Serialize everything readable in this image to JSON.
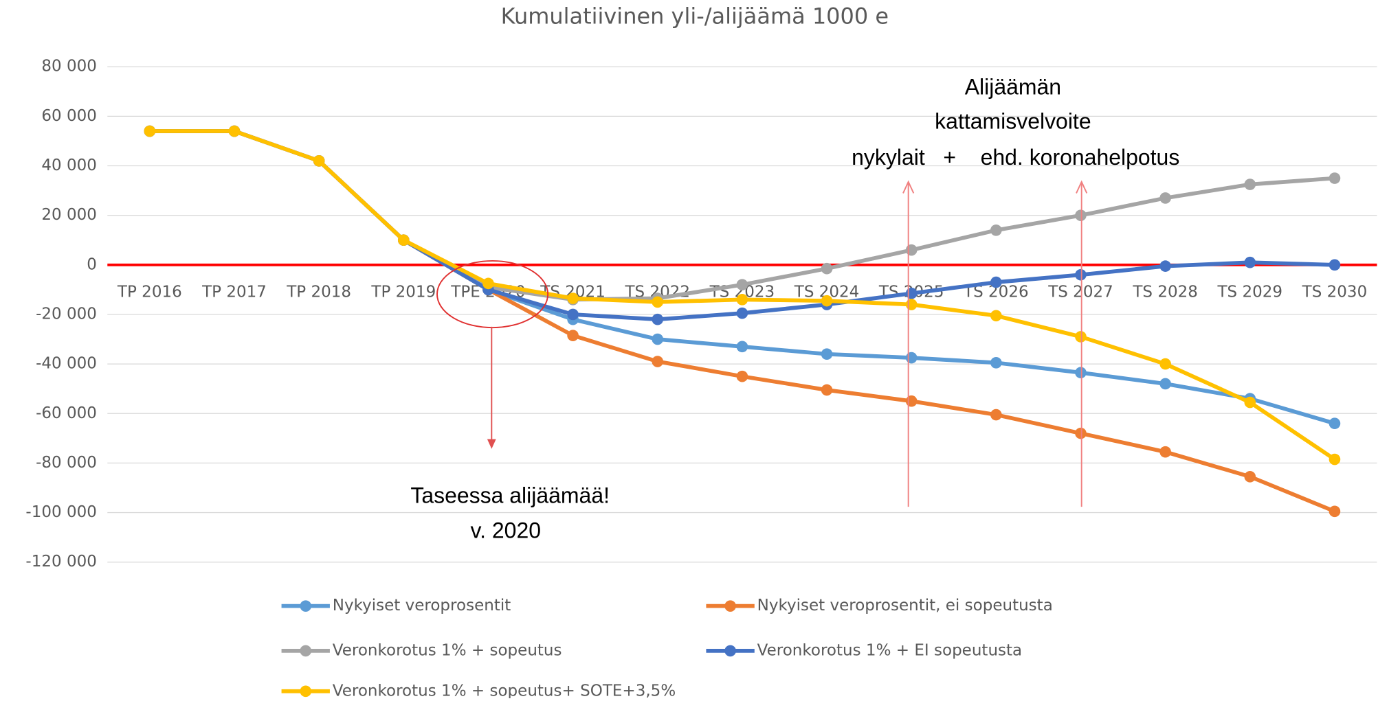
{
  "chart_data": {
    "type": "line",
    "title": "Kumulatiivinen yli-/alijäämä 1000 e",
    "categories": [
      "TP 2016",
      "TP 2017",
      "TP 2018",
      "TP 2019",
      "TPE 2020",
      "TS 2021",
      "TS 2022",
      "TS 2023",
      "TS 2024",
      "TS 2025",
      "TS 2026",
      "TS 2027",
      "TS 2028",
      "TS 2029",
      "TS 2030"
    ],
    "series": [
      {
        "name": "Nykyiset veroprosentit",
        "color": "#5b9bd5",
        "values": [
          54000,
          54000,
          42000,
          10000,
          -10000,
          -22000,
          -30000,
          -33000,
          -36000,
          -37500,
          -39500,
          -43500,
          -48000,
          -54000,
          -64000
        ]
      },
      {
        "name": "Nykyiset veroprosentit, ei sopeutusta",
        "color": "#ed7d31",
        "values": [
          54000,
          54000,
          42000,
          10000,
          -10000,
          -28500,
          -39000,
          -45000,
          -50500,
          -55000,
          -60500,
          -68000,
          -75500,
          -85500,
          -99500
        ]
      },
      {
        "name": "Veronkorotus 1% + sopeutus",
        "color": "#a5a5a5",
        "values": [
          54000,
          54000,
          42000,
          10000,
          -9000,
          -14000,
          -13500,
          -8000,
          -1500,
          6000,
          14000,
          20000,
          27000,
          32500,
          35000
        ]
      },
      {
        "name": "Veronkorotus 1% + EI sopeutusta",
        "color": "#4472c4",
        "values": [
          54000,
          54000,
          42000,
          10000,
          -10000,
          -20000,
          -22000,
          -19500,
          -16000,
          -11500,
          -7000,
          -4000,
          -500,
          1000,
          0
        ]
      },
      {
        "name": "Veronkorotus 1% + sopeutus+ SOTE+3,5%",
        "color": "#ffc000",
        "values": [
          54000,
          54000,
          42000,
          10000,
          -7500,
          -13500,
          -15000,
          -14000,
          -14500,
          -16000,
          -20500,
          -29000,
          -40000,
          -55500,
          -78500
        ]
      }
    ],
    "ylim": [
      -120000,
      80000
    ],
    "yticks": [
      {
        "value": -120000,
        "label": "-120 000"
      },
      {
        "value": -100000,
        "label": "-100 000"
      },
      {
        "value": -80000,
        "label": "-80 000"
      },
      {
        "value": -60000,
        "label": "-60 000"
      },
      {
        "value": -40000,
        "label": "-40 000"
      },
      {
        "value": -20000,
        "label": "-20 000"
      },
      0,
      {
        "value": 20000,
        "label": "20 000"
      },
      {
        "value": 40000,
        "label": "40 000"
      },
      {
        "value": 60000,
        "label": "60 000"
      },
      {
        "value": 80000,
        "label": "80 000"
      }
    ],
    "grid": true,
    "zero_line_color": "#ff0000",
    "legend": "bottom",
    "annotations": [
      "Alijäämän",
      "kattamisvelvoite",
      "nykylait   +    ehd. koronahelpotus",
      "Taseessa alijäämää!",
      "v. 2020"
    ]
  }
}
